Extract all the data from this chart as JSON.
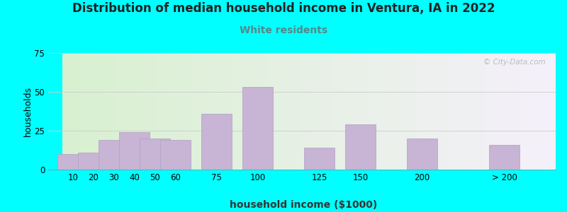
{
  "title": "Distribution of median household income in Ventura, IA in 2022",
  "subtitle": "White residents",
  "xlabel": "household income ($1000)",
  "ylabel": "households",
  "background_color": "#00FFFF",
  "plot_bg_left": "#d8f0d0",
  "plot_bg_right": "#f5f0fa",
  "bar_color": "#C8B4D4",
  "bar_edge_color": "#b0a0c0",
  "title_fontsize": 12,
  "subtitle_fontsize": 10,
  "subtitle_color": "#558888",
  "xlabel_fontsize": 10,
  "ylabel_fontsize": 9,
  "tick_fontsize": 8.5,
  "ylim": [
    0,
    75
  ],
  "yticks": [
    0,
    25,
    50,
    75
  ],
  "categories": [
    "10",
    "20",
    "30",
    "40",
    "50",
    "60",
    "75",
    "100",
    "125",
    "150",
    "200",
    "> 200"
  ],
  "values": [
    10,
    11,
    19,
    24,
    20,
    19,
    36,
    53,
    14,
    29,
    20,
    16
  ],
  "positions": [
    0,
    1,
    2,
    3,
    4,
    5,
    7,
    9,
    12,
    14,
    17,
    21
  ],
  "bar_width": 1.5,
  "watermark_text": "© City-Data.com"
}
